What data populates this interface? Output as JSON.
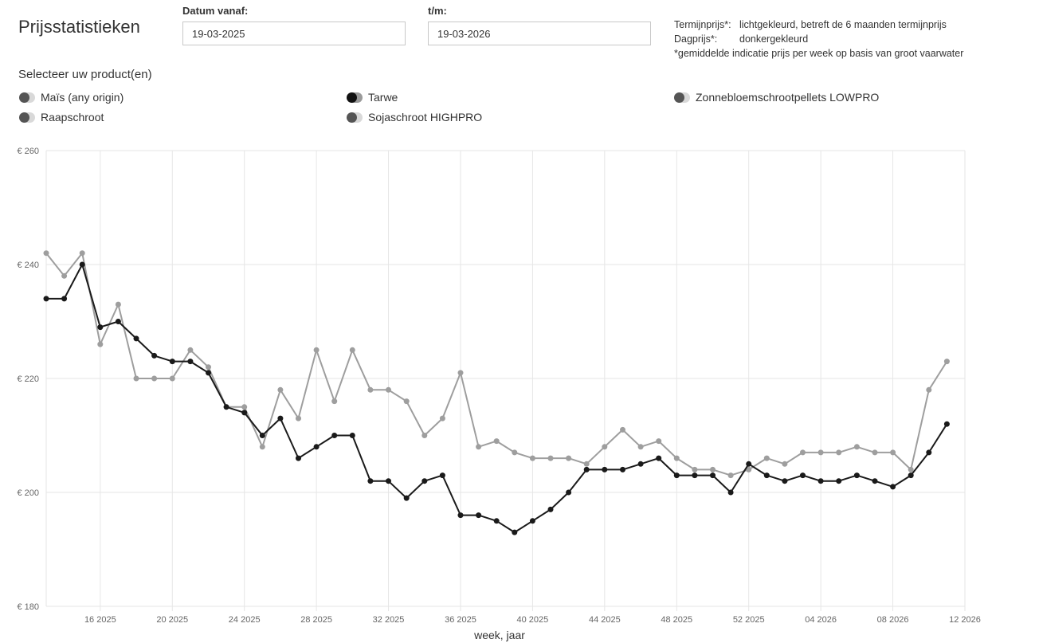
{
  "header": {
    "title": "Prijsstatistieken",
    "date_from_label": "Datum vanaf:",
    "date_from_value": "19-03-2025",
    "date_to_label": "t/m:",
    "date_to_value": "19-03-2026"
  },
  "legend_info": {
    "termijn_key": "Termijnprijs*:",
    "termijn_value": "lichtgekleurd, betreft de 6 maanden termijnprijs",
    "dag_key": "Dagprijs*:",
    "dag_value": "donkergekleurd",
    "note": "*gemiddelde indicatie prijs per week op basis van groot vaarwater"
  },
  "products": {
    "label": "Selecteer uw product(en)",
    "items": [
      {
        "label": "Maïs (any origin)",
        "selected": false
      },
      {
        "label": "Tarwe",
        "selected": true
      },
      {
        "label": "Zonnebloemschrootpellets LOWPRO",
        "selected": false
      },
      {
        "label": "Raapschroot",
        "selected": false
      },
      {
        "label": "Sojaschroot HIGHPRO",
        "selected": false
      }
    ]
  },
  "colors": {
    "dagprijs": "#1a1a1a",
    "termijnprijs": "#9e9e9e",
    "grid": "#e6e6e6"
  },
  "chart_data": {
    "type": "line",
    "title": "",
    "xlabel": "week, jaar",
    "ylabel": "",
    "ylim": [
      180,
      260
    ],
    "yticks": [
      180,
      200,
      220,
      240,
      260
    ],
    "ytick_labels": [
      "€ 180",
      "€ 200",
      "€ 220",
      "€ 240",
      "€ 260"
    ],
    "x_start_week_index": 13,
    "xticks": [
      16,
      20,
      24,
      28,
      32,
      36,
      40,
      44,
      48,
      52,
      56,
      60,
      64
    ],
    "xtick_labels": [
      "16 2025",
      "20 2025",
      "24 2025",
      "28 2025",
      "32 2025",
      "36 2025",
      "40 2025",
      "44 2025",
      "48 2025",
      "52 2025",
      "04 2026",
      "08 2026",
      "12 2026"
    ],
    "grid": true,
    "series": [
      {
        "name": "Tarwe termijnprijs",
        "kind": "termijnprijs",
        "values": [
          242,
          238,
          242,
          226,
          233,
          220,
          220,
          220,
          225,
          222,
          215,
          215,
          208,
          218,
          213,
          225,
          216,
          225,
          218,
          218,
          216,
          210,
          213,
          221,
          208,
          209,
          207,
          206,
          206,
          206,
          205,
          208,
          211,
          208,
          209,
          206,
          204,
          204,
          203,
          204,
          206,
          205,
          207,
          207,
          207,
          208,
          207,
          207,
          204,
          218,
          223
        ]
      },
      {
        "name": "Tarwe dagprijs",
        "kind": "dagprijs",
        "values": [
          234,
          234,
          240,
          229,
          230,
          227,
          224,
          223,
          223,
          221,
          215,
          214,
          210,
          213,
          206,
          208,
          210,
          210,
          202,
          202,
          199,
          202,
          203,
          196,
          196,
          195,
          193,
          195,
          197,
          200,
          204,
          204,
          204,
          205,
          206,
          203,
          203,
          203,
          200,
          205,
          203,
          202,
          203,
          202,
          202,
          203,
          202,
          201,
          203,
          207,
          212
        ]
      }
    ]
  }
}
